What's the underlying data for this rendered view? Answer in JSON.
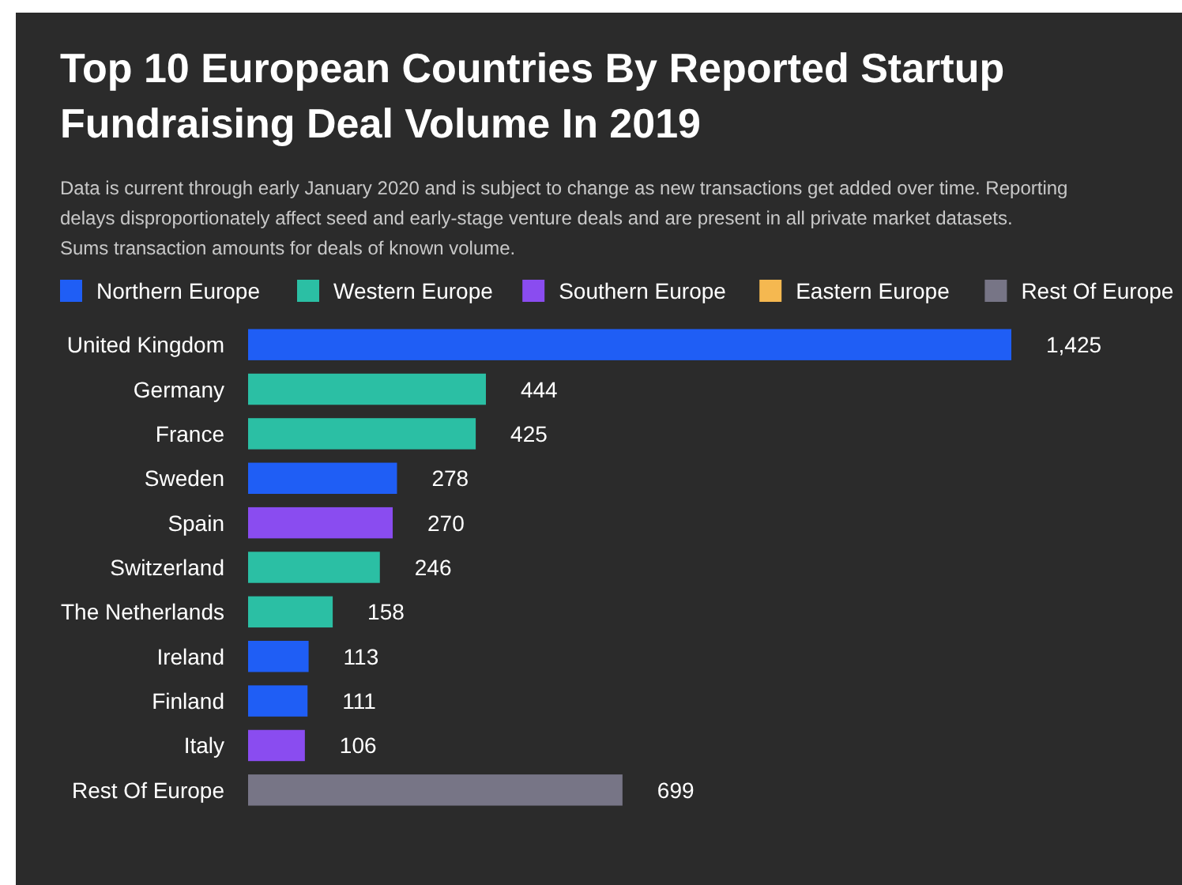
{
  "chart_data": {
    "type": "bar",
    "orientation": "horizontal",
    "legend": "top",
    "title": "Top 10 European Countries By Reported Startup Fundraising Deal Volume In 2019",
    "subtitle": "Data is current through early January 2020 and is subject to change as new transactions get added over time. Reporting delays disproportionately affect seed and early-stage venture deals and are present in all private market datasets. Sums transaction amounts for deals of known volume.",
    "categories": [
      "United Kingdom",
      "Germany",
      "France",
      "Sweden",
      "Spain",
      "Switzerland",
      "The Netherlands",
      "Ireland",
      "Finland",
      "Italy",
      "Rest Of Europe"
    ],
    "series": [
      {
        "name": "Northern Europe",
        "color": "#1f5ef5",
        "values": [
          1425,
          null,
          null,
          278,
          null,
          null,
          null,
          113,
          111,
          null,
          null
        ],
        "value_labels": [
          "1,425",
          null,
          null,
          "278",
          null,
          null,
          null,
          "113",
          "111",
          null,
          null
        ]
      },
      {
        "name": "Western Europe",
        "color": "#2bbfa4",
        "values": [
          null,
          444,
          425,
          null,
          null,
          246,
          158,
          null,
          null,
          null,
          null
        ],
        "value_labels": [
          null,
          "444",
          "425",
          null,
          null,
          "246",
          "158",
          null,
          null,
          null,
          null
        ]
      },
      {
        "name": "Southern Europe",
        "color": "#8a4cf0",
        "values": [
          null,
          null,
          null,
          null,
          270,
          null,
          null,
          null,
          null,
          106,
          null
        ],
        "value_labels": [
          null,
          null,
          null,
          null,
          "270",
          null,
          null,
          null,
          null,
          "106",
          null
        ]
      },
      {
        "name": "Eastern Europe",
        "color": "#f5b850",
        "values": [
          null,
          null,
          null,
          null,
          null,
          null,
          null,
          null,
          null,
          null,
          null
        ]
      },
      {
        "name": "Rest Of Europe",
        "color": "#777586",
        "values": [
          null,
          null,
          null,
          null,
          null,
          null,
          null,
          null,
          null,
          null,
          699
        ],
        "value_labels": [
          null,
          null,
          null,
          null,
          null,
          null,
          null,
          null,
          null,
          null,
          "699"
        ]
      }
    ]
  }
}
